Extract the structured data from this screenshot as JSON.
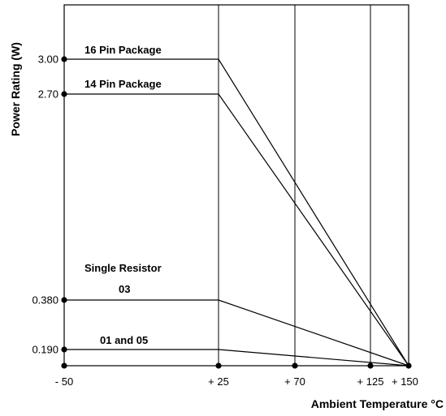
{
  "chart_data": {
    "type": "line",
    "title": "",
    "xlabel": "Ambient Temperature °C",
    "ylabel": "Power Rating (W)",
    "x_ticks": [
      {
        "value": -50,
        "label": "- 50"
      },
      {
        "value": 25,
        "label": "+ 25"
      },
      {
        "value": 70,
        "label": "+ 70"
      },
      {
        "value": 125,
        "label": "+ 125"
      },
      {
        "value": 150,
        "label": "+ 150"
      }
    ],
    "y_ticks": [
      {
        "value": 0.19,
        "label": "0.190"
      },
      {
        "value": 0.38,
        "label": "0.380"
      },
      {
        "value": 2.7,
        "label": "2.70"
      },
      {
        "value": 3.0,
        "label": "3.00"
      }
    ],
    "series": [
      {
        "name": "16 Pin Package",
        "points": [
          {
            "x": -50,
            "y": 3.0
          },
          {
            "x": 25,
            "y": 3.0
          },
          {
            "x": 150,
            "y": 0
          }
        ]
      },
      {
        "name": "14 Pin Package",
        "points": [
          {
            "x": -50,
            "y": 2.7
          },
          {
            "x": 25,
            "y": 2.7
          },
          {
            "x": 150,
            "y": 0
          }
        ]
      },
      {
        "name": "03",
        "points": [
          {
            "x": -50,
            "y": 0.38
          },
          {
            "x": 25,
            "y": 0.38
          },
          {
            "x": 150,
            "y": 0
          }
        ]
      },
      {
        "name": "01 and 05",
        "points": [
          {
            "x": -50,
            "y": 0.19
          },
          {
            "x": 25,
            "y": 0.19
          },
          {
            "x": 150,
            "y": 0
          }
        ]
      }
    ],
    "annotations": [
      {
        "text": "Single Resistor"
      }
    ],
    "grid": "vertical lines at x ticks"
  }
}
